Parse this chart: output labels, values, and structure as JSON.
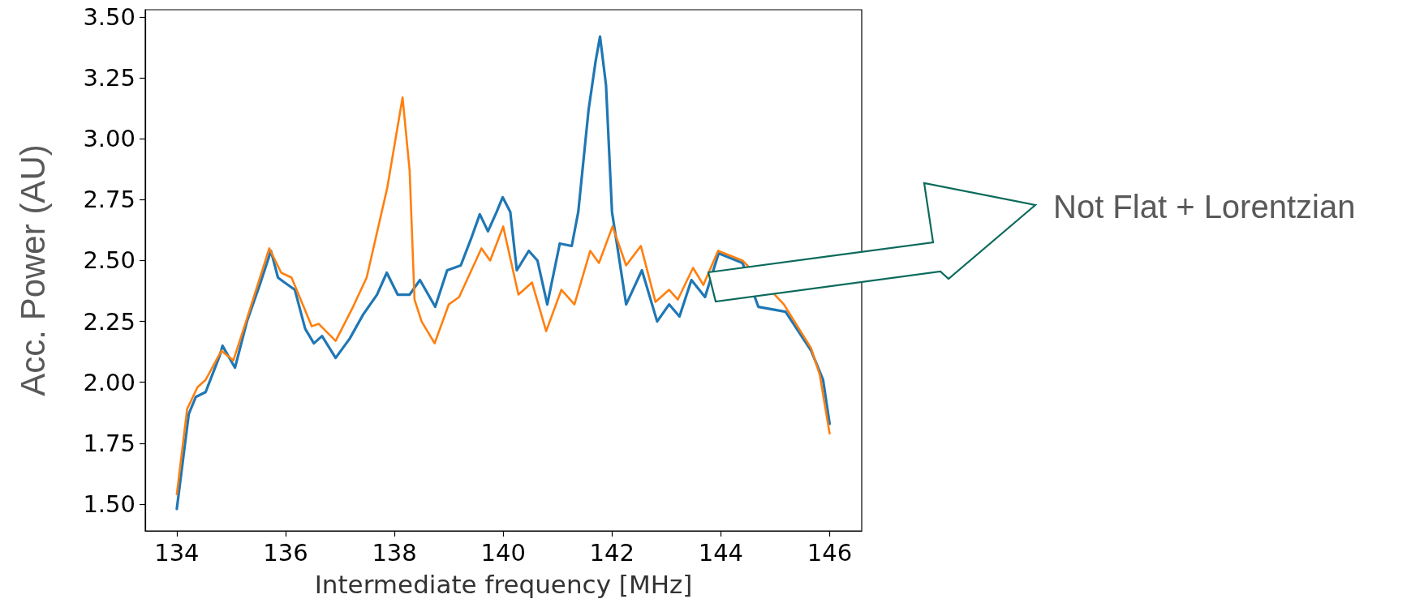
{
  "chart_data": {
    "type": "line",
    "xlabel": "Intermediate frequency [MHz]",
    "ylabel": "Acc. Power (AU)",
    "xlim": [
      133.42,
      146.59
    ],
    "xticks": [
      134,
      136,
      138,
      140,
      142,
      144,
      146
    ],
    "ylim": [
      1.39,
      3.53
    ],
    "yticks": [
      {
        "value": 1.5,
        "label": "1.50"
      },
      {
        "value": 1.75,
        "label": "1.75"
      },
      {
        "value": 2,
        "label": "2.00"
      },
      {
        "value": 2.25,
        "label": "2.25"
      },
      {
        "value": 2.5,
        "label": "2.50"
      },
      {
        "value": 2.75,
        "label": "2.75"
      },
      {
        "value": 3,
        "label": "3.00"
      },
      {
        "value": 3.25,
        "label": "3.25"
      },
      {
        "value": 3.5,
        "label": "3.50"
      }
    ],
    "grid": false,
    "marker": "none",
    "line_style": "solid",
    "annotations": [
      "Not Flat + Lorentzian"
    ],
    "series": [
      {
        "color": "#1f77b4",
        "x": [
          134,
          134.22,
          134.35,
          134.53,
          134.79,
          134.84,
          135.07,
          135.29,
          135.54,
          135.73,
          135.86,
          135.98,
          136.17,
          136.36,
          136.52,
          136.67,
          136.92,
          137.18,
          137.43,
          137.68,
          137.86,
          138.06,
          138.28,
          138.47,
          138.75,
          138.97,
          139.22,
          139.41,
          139.57,
          139.72,
          139.88,
          139.99,
          140.13,
          140.25,
          140.47,
          140.63,
          140.81,
          141.04,
          141.26,
          141.38,
          141.57,
          141.7,
          141.78,
          141.89,
          142.0,
          142.26,
          142.55,
          142.83,
          143.05,
          143.24,
          143.46,
          143.71,
          143.96,
          144.15,
          144.4,
          144.69,
          144.91,
          145.19,
          145.41,
          145.5,
          145.66,
          145.88,
          146.0
        ],
        "values": [
          1.48,
          1.87,
          1.94,
          1.96,
          2.11,
          2.15,
          2.06,
          2.25,
          2.41,
          2.54,
          2.43,
          2.41,
          2.38,
          2.22,
          2.16,
          2.19,
          2.1,
          2.18,
          2.28,
          2.36,
          2.45,
          2.36,
          2.36,
          2.42,
          2.31,
          2.46,
          2.48,
          2.59,
          2.69,
          2.62,
          2.7,
          2.76,
          2.7,
          2.46,
          2.54,
          2.5,
          2.32,
          2.57,
          2.56,
          2.7,
          3.12,
          3.32,
          3.42,
          3.22,
          2.7,
          2.32,
          2.46,
          2.25,
          2.32,
          2.27,
          2.42,
          2.35,
          2.53,
          null,
          2.49,
          2.31,
          null,
          2.29,
          null,
          null,
          2.13,
          2.01,
          1.83
        ]
      },
      {
        "color": "#ff7f0e",
        "x": [
          134,
          134.19,
          134.38,
          134.53,
          134.82,
          135.04,
          135.23,
          135.7,
          135.92,
          136.11,
          136.48,
          136.61,
          136.92,
          137.24,
          137.49,
          137.87,
          138.15,
          138.28,
          138.37,
          138.5,
          138.74,
          139.0,
          139.19,
          139.6,
          139.76,
          140.0,
          140.28,
          140.53,
          140.79,
          141.07,
          141.31,
          141.6,
          141.76,
          142.01,
          142.26,
          142.53,
          142.8,
          143.05,
          143.21,
          143.49,
          143.68,
          143.95,
          144.21,
          144.4,
          144.72,
          144.91,
          145.16,
          145.41,
          145.5,
          145.66,
          145.82,
          146.0
        ],
        "values": [
          1.54,
          1.89,
          1.98,
          2.01,
          2.13,
          2.09,
          2.22,
          2.55,
          2.45,
          2.43,
          2.23,
          2.24,
          2.17,
          2.31,
          2.43,
          2.8,
          3.17,
          2.87,
          2.34,
          2.25,
          2.16,
          2.32,
          2.35,
          2.55,
          2.5,
          2.64,
          2.36,
          2.41,
          2.21,
          2.38,
          2.32,
          2.54,
          2.49,
          2.64,
          2.48,
          2.56,
          2.33,
          2.38,
          2.34,
          2.47,
          2.4,
          2.54,
          null,
          2.5,
          null,
          null,
          2.32,
          null,
          null,
          2.14,
          2.03,
          1.79
        ]
      }
    ]
  }
}
